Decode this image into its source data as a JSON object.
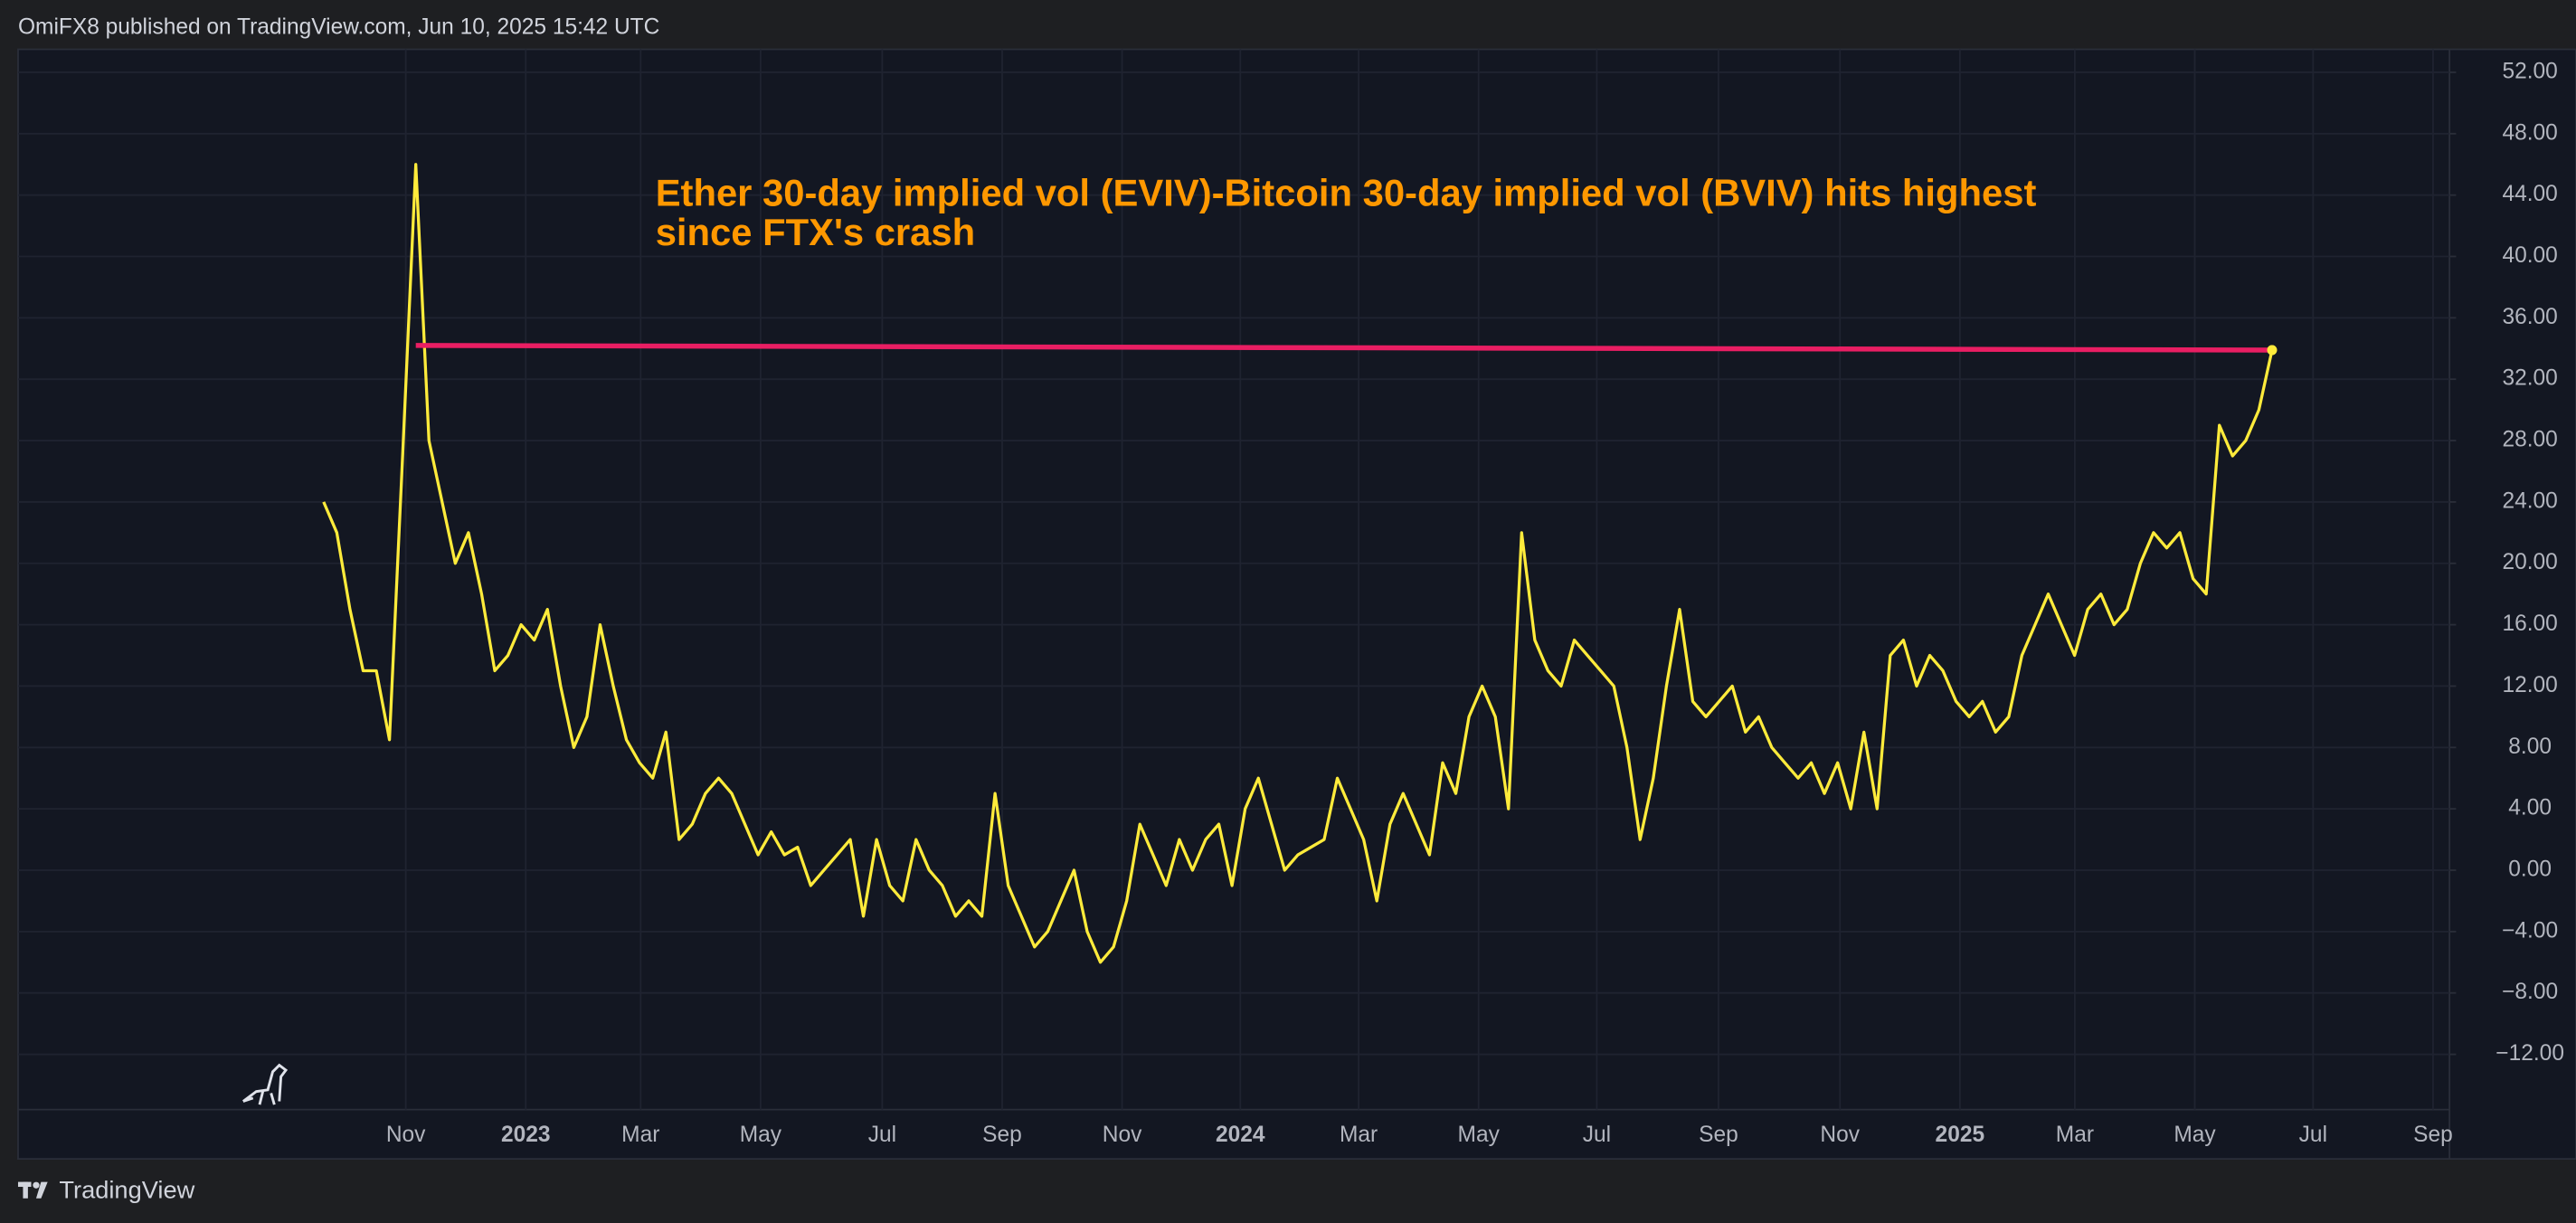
{
  "header": "OmiFX8 published on TradingView.com, Jun 10, 2025 15:42 UTC",
  "footer": "TradingView",
  "chart_data": {
    "type": "line",
    "title": [
      "Ether 30-day implied vol (EVIV)-Bitcoin 30-day implied vol (BVIV) hits highest",
      "since FTX's crash"
    ],
    "series": [
      {
        "color": "#ffeb3b",
        "values": [
          24,
          22,
          17,
          13,
          13,
          8.5,
          27,
          46,
          28,
          24,
          20,
          22,
          18,
          13,
          14,
          16,
          15,
          17,
          12,
          8,
          10,
          16,
          12,
          8.5,
          7,
          6,
          9,
          2,
          3,
          5,
          6,
          5,
          3,
          1,
          2.5,
          1,
          1.5,
          -1,
          0,
          1,
          2,
          -3,
          2,
          -1,
          -2,
          2,
          0,
          -1,
          -3,
          -2,
          -3,
          5,
          -1,
          -3,
          -5,
          -4,
          -2,
          0,
          -4,
          -6,
          -5,
          -2,
          3,
          1,
          -1,
          2,
          0,
          2,
          3,
          -1,
          4,
          6,
          3,
          0,
          1,
          1.5,
          2,
          6,
          4,
          2,
          -2,
          3,
          5,
          3,
          1,
          7,
          5,
          10,
          12,
          10,
          4,
          22,
          15,
          13,
          12,
          15,
          14,
          13,
          12,
          8,
          2,
          6,
          12,
          17,
          11,
          10,
          11,
          12,
          9,
          10,
          8,
          7,
          6,
          7,
          5,
          7,
          4,
          9,
          4,
          14,
          15,
          12,
          14,
          13,
          11,
          10,
          11,
          9,
          10,
          14,
          16,
          18,
          16,
          14,
          17,
          18,
          16,
          17,
          20,
          22,
          21,
          22,
          19,
          18,
          29,
          27,
          28,
          30,
          33.9
        ]
      }
    ],
    "hline": {
      "color": "#e91e63",
      "x": [
        7,
        148
      ],
      "values": [
        34.2,
        33.9
      ]
    },
    "xlim": [
      -23.21,
      161.48
    ],
    "xticks": [
      {
        "value": 6.24,
        "label": "Nov"
      },
      {
        "value": 15.35,
        "label": "2023"
      },
      {
        "value": 24.08,
        "label": "Mar"
      },
      {
        "value": 33.19,
        "label": "May"
      },
      {
        "value": 42.43,
        "label": "Jul"
      },
      {
        "value": 51.54,
        "label": "Sep"
      },
      {
        "value": 60.65,
        "label": "Nov"
      },
      {
        "value": 69.63,
        "label": "2024"
      },
      {
        "value": 78.62,
        "label": "Mar"
      },
      {
        "value": 87.73,
        "label": "May"
      },
      {
        "value": 96.71,
        "label": "Jul"
      },
      {
        "value": 105.95,
        "label": "Sep"
      },
      {
        "value": 115.18,
        "label": "Nov"
      },
      {
        "value": 124.29,
        "label": "2025"
      },
      {
        "value": 133.02,
        "label": "Mar"
      },
      {
        "value": 142.13,
        "label": "May"
      },
      {
        "value": 151.12,
        "label": "Jul"
      },
      {
        "value": 160.23,
        "label": "Sep"
      }
    ],
    "ylim": [
      -15.6,
      53.5
    ],
    "yticks": [
      {
        "value": 52,
        "label": "52.00"
      },
      {
        "value": 48,
        "label": "48.00"
      },
      {
        "value": 44,
        "label": "44.00"
      },
      {
        "value": 40,
        "label": "40.00"
      },
      {
        "value": 36,
        "label": "36.00"
      },
      {
        "value": 32,
        "label": "32.00"
      },
      {
        "value": 28,
        "label": "28.00"
      },
      {
        "value": 24,
        "label": "24.00"
      },
      {
        "value": 20,
        "label": "20.00"
      },
      {
        "value": 16,
        "label": "16.00"
      },
      {
        "value": 12,
        "label": "12.00"
      },
      {
        "value": 8,
        "label": "8.00"
      },
      {
        "value": 4,
        "label": "4.00"
      },
      {
        "value": 0,
        "label": "0.00"
      },
      {
        "value": -4,
        "label": "−4.00"
      },
      {
        "value": -8,
        "label": "−8.00"
      },
      {
        "value": -12,
        "label": "−12.00"
      }
    ],
    "grid": true
  }
}
